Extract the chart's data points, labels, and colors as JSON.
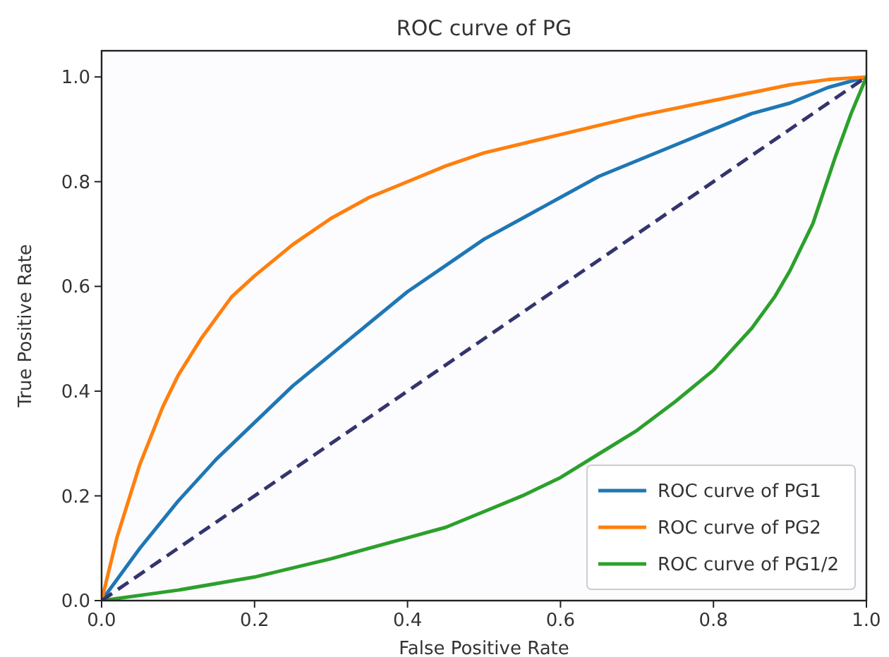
{
  "chart_data": {
    "type": "line",
    "title": "ROC curve of PG",
    "xlabel": "False Positive Rate",
    "ylabel": "True Positive Rate",
    "xlim": [
      0,
      1
    ],
    "ylim": [
      0,
      1.05
    ],
    "xticks": [
      {
        "value": 0,
        "label": "0.0"
      },
      {
        "value": 0.2,
        "label": "0.2"
      },
      {
        "value": 0.4,
        "label": "0.4"
      },
      {
        "value": 0.6,
        "label": "0.6"
      },
      {
        "value": 0.8,
        "label": "0.8"
      },
      {
        "value": 1,
        "label": "1.0"
      }
    ],
    "yticks": [
      {
        "value": 0,
        "label": "0.0"
      },
      {
        "value": 0.2,
        "label": "0.2"
      },
      {
        "value": 0.4,
        "label": "0.4"
      },
      {
        "value": 0.6,
        "label": "0.6"
      },
      {
        "value": 0.8,
        "label": "0.8"
      },
      {
        "value": 1,
        "label": "1.0"
      }
    ],
    "legend": "bottom right",
    "grid": false,
    "marker": "none",
    "series": [
      {
        "name": "ROC curve of PG1",
        "color": "#1f77b4",
        "x": [
          0,
          0.05,
          0.1,
          0.15,
          0.2,
          0.25,
          0.3,
          0.35,
          0.4,
          0.45,
          0.5,
          0.55,
          0.6,
          0.65,
          0.7,
          0.75,
          0.8,
          0.85,
          0.9,
          0.95,
          1
        ],
        "values": [
          0,
          0.1,
          0.19,
          0.27,
          0.34,
          0.41,
          0.47,
          0.53,
          0.59,
          0.64,
          0.69,
          0.73,
          0.77,
          0.81,
          0.84,
          0.87,
          0.9,
          0.93,
          0.95,
          0.98,
          1
        ]
      },
      {
        "name": "ROC curve of PG2",
        "color": "#ff7f0e",
        "x": [
          0,
          0.02,
          0.05,
          0.08,
          0.1,
          0.13,
          0.17,
          0.2,
          0.25,
          0.3,
          0.35,
          0.4,
          0.45,
          0.5,
          0.6,
          0.7,
          0.8,
          0.9,
          0.95,
          1
        ],
        "values": [
          0,
          0.12,
          0.26,
          0.37,
          0.43,
          0.5,
          0.58,
          0.62,
          0.68,
          0.73,
          0.77,
          0.8,
          0.83,
          0.855,
          0.89,
          0.925,
          0.955,
          0.985,
          0.995,
          1
        ]
      },
      {
        "name": "ROC curve of PG1/2",
        "color": "#2ca02c",
        "x": [
          0,
          0.1,
          0.2,
          0.3,
          0.4,
          0.45,
          0.5,
          0.55,
          0.6,
          0.65,
          0.7,
          0.75,
          0.8,
          0.85,
          0.88,
          0.9,
          0.93,
          0.96,
          0.98,
          1
        ],
        "values": [
          0,
          0.02,
          0.045,
          0.08,
          0.12,
          0.14,
          0.17,
          0.2,
          0.235,
          0.28,
          0.325,
          0.38,
          0.44,
          0.52,
          0.58,
          0.63,
          0.72,
          0.85,
          0.93,
          1
        ]
      },
      {
        "type": "line",
        "color": "#34346e",
        "line_style": "dashed",
        "x": [
          0,
          1
        ],
        "values": [
          0,
          1
        ]
      }
    ]
  }
}
